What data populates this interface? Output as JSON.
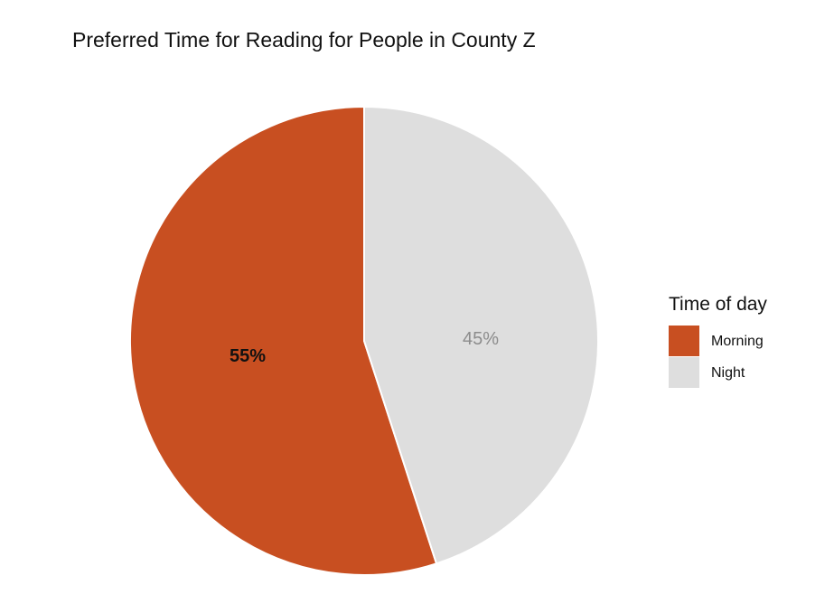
{
  "chart_data": {
    "type": "pie",
    "title": "Preferred Time for Reading for People in County Z",
    "legend_title": "Time of day",
    "legend_position": "right",
    "slices": [
      {
        "label": "Morning",
        "value": 55,
        "display": "55%",
        "color": "#C84F21",
        "label_color": "#111111",
        "label_bold": true
      },
      {
        "label": "Night",
        "value": 45,
        "display": "45%",
        "color": "#DEDEDE",
        "label_color": "#8C8C8C",
        "label_bold": false
      }
    ]
  }
}
